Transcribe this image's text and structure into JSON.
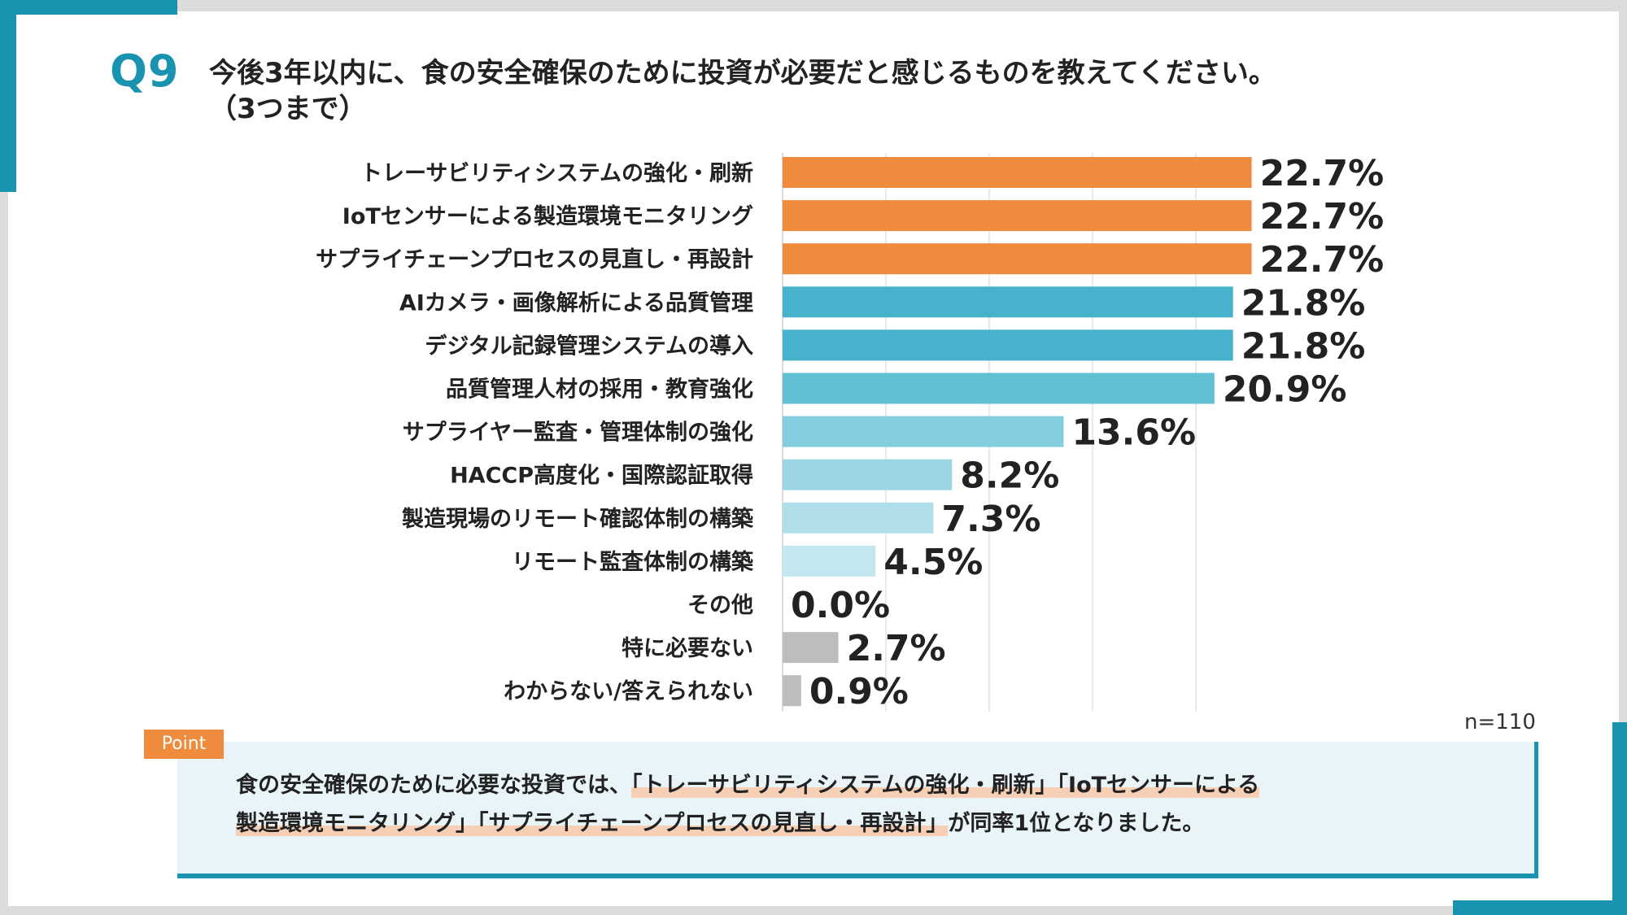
{
  "header": {
    "question": "Q9",
    "title_line1": "今後3年以内に、食の安全確保のために投資が必要だと感じるものを教えてください。",
    "title_line2": "（3つまで）"
  },
  "colors": {
    "accent": "#1a93b0",
    "orange": "#f08a3c",
    "gray": "#bdbdbd"
  },
  "chart_data": {
    "type": "bar",
    "orientation": "horizontal",
    "categories": [
      "トレーサビリティシステムの強化・刷新",
      "IoTセンサーによる製造環境モニタリング",
      "サプライチェーンプロセスの見直し・再設計",
      "AIカメラ・画像解析による品質管理",
      "デジタル記録管理システムの導入",
      "品質管理人材の採用・教育強化",
      "サプライヤー監査・管理体制の強化",
      "HACCP高度化・国際認証取得",
      "製造現場のリモート確認体制の構築",
      "リモート監査体制の構築",
      "その他",
      "特に必要ない",
      "わからない/答えられない"
    ],
    "values": [
      22.7,
      22.7,
      22.7,
      21.8,
      21.8,
      20.9,
      13.6,
      8.2,
      7.3,
      4.5,
      0.0,
      2.7,
      0.9
    ],
    "value_labels": [
      "22.7%",
      "22.7%",
      "22.7%",
      "21.8%",
      "21.8%",
      "20.9%",
      "13.6%",
      "8.2%",
      "7.3%",
      "4.5%",
      "0.0%",
      "2.7%",
      "0.9%"
    ],
    "bar_colors": [
      "#f08a3c",
      "#f08a3c",
      "#f08a3c",
      "#46b2cb",
      "#46b2cb",
      "#62bfd4",
      "#84cddf",
      "#9cd6e5",
      "#b0dfe9",
      "#c3e7ef",
      "#c3e7ef",
      "#bdbdbd",
      "#bdbdbd"
    ],
    "xlim": [
      0,
      25
    ],
    "grid": true,
    "sample_size": "n=110"
  },
  "point": {
    "badge": "Point",
    "line1_pre": "食の安全確保のために必要な投資では、",
    "line1_hl": "「トレーサビリティシステムの強化・刷新」「IoTセンサーによる",
    "line2_hl": "製造環境モニタリング」「サプライチェーンプロセスの見直し・再設計」",
    "line2_post": "が同率1位となりました。"
  }
}
